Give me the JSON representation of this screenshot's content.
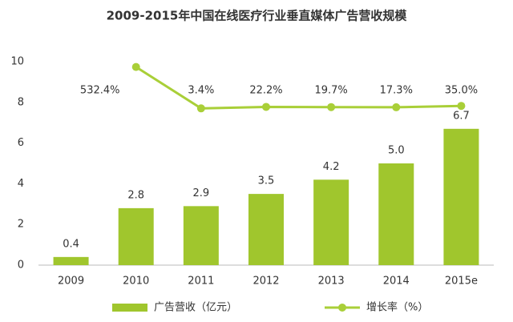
{
  "chart_data": {
    "type": "bar_line",
    "title": "2009-2015年中国在线医疗行业垂直媒体广告营收规模",
    "categories": [
      "2009",
      "2010",
      "2011",
      "2012",
      "2013",
      "2014",
      "2015e"
    ],
    "series": [
      {
        "name": "广告营收（亿元）",
        "type": "bar",
        "color": "#a0c62d",
        "values": [
          0.4,
          2.8,
          2.9,
          3.5,
          4.2,
          5.0,
          6.7
        ],
        "value_labels": [
          "0.4",
          "2.8",
          "2.9",
          "3.5",
          "4.2",
          "5.0",
          "6.7"
        ]
      },
      {
        "name": "增长率（%）",
        "type": "line",
        "axis": "y2",
        "color": "#a9cf38",
        "values": [
          null,
          532.4,
          3.4,
          22.2,
          19.7,
          17.3,
          35.0
        ],
        "value_labels": [
          null,
          "532.4%",
          "3.4%",
          "22.2%",
          "19.7%",
          "17.3%",
          "35.0%"
        ]
      }
    ],
    "ylim": [
      0,
      10
    ],
    "yticks": [
      0,
      2,
      4,
      6,
      8,
      10
    ],
    "y2lim": [
      -2000,
      600
    ],
    "legend": "bottom"
  }
}
